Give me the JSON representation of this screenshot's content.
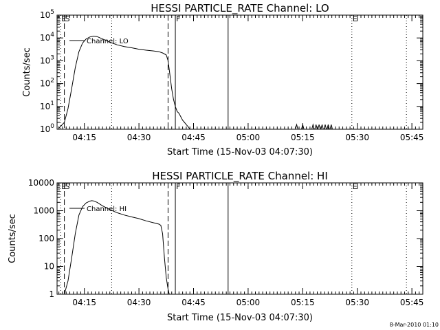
{
  "chart_data": [
    {
      "type": "line",
      "title": "HESSI PARTICLE_RATE Channel: LO",
      "xlabel": "Start Time (15-Nov-03 04:07:30)",
      "ylabel": "Counts/sec",
      "yscale": "log",
      "grid": false,
      "legend_position": "top-left",
      "xlim": [
        "04:07:30",
        "05:48:00"
      ],
      "ylim": [
        1,
        100000
      ],
      "x_ticks": [
        "04:15",
        "04:30",
        "04:45",
        "05:00",
        "05:15",
        "05:30",
        "05:45"
      ],
      "y_ticks": [
        {
          "value": 1,
          "base": "10",
          "exp": "0"
        },
        {
          "value": 10,
          "base": "10",
          "exp": "1"
        },
        {
          "value": 100,
          "base": "10",
          "exp": "2"
        },
        {
          "value": 1000,
          "base": "10",
          "exp": "3"
        },
        {
          "value": 10000,
          "base": "10",
          "exp": "4"
        },
        {
          "value": 100000,
          "base": "10",
          "exp": "5"
        }
      ],
      "series": [
        {
          "name": "Channel: LO",
          "x": [
            "04:08:00",
            "04:09:30",
            "04:10:30",
            "04:11:30",
            "04:12:30",
            "04:13:30",
            "04:14:30",
            "04:15:30",
            "04:16:30",
            "04:17:30",
            "04:18:30",
            "04:20:00",
            "04:22:00",
            "04:24:00",
            "04:26:00",
            "04:28:00",
            "04:30:00",
            "04:32:00",
            "04:34:00",
            "04:35:30",
            "04:36:30",
            "04:37:30",
            "04:38:00",
            "04:38:30",
            "04:39:00",
            "04:39:30",
            "04:40:00",
            "04:40:30",
            "04:41:00",
            "04:41:30",
            "04:42:00",
            "04:42:30",
            "04:43:00",
            "04:43:30",
            "04:44:00"
          ],
          "y": [
            1.1,
            2,
            8,
            60,
            500,
            2500,
            6000,
            9000,
            11000,
            12000,
            11500,
            9000,
            6500,
            5000,
            4200,
            3700,
            3200,
            2900,
            2700,
            2500,
            2200,
            1800,
            1000,
            250,
            60,
            20,
            10,
            6,
            5,
            3.5,
            2.5,
            2,
            1.6,
            1.3,
            1
          ]
        },
        {
          "name": "",
          "x": [
            "05:13:00",
            "05:13:20",
            "05:13:40",
            "05:14:40",
            "05:15:00",
            "05:15:20",
            "05:17:30",
            "05:17:50",
            "05:18:10",
            "05:18:20",
            "05:18:40",
            "05:19:00",
            "05:19:10",
            "05:19:30",
            "05:19:50",
            "05:20:00",
            "05:20:20",
            "05:20:40",
            "05:20:50",
            "05:21:10",
            "05:21:30",
            "05:21:40",
            "05:22:00",
            "05:22:20",
            "05:22:30",
            "05:22:50",
            "05:23:10"
          ],
          "y": [
            1,
            1.6,
            1,
            1,
            1.6,
            1,
            1,
            1.6,
            1,
            1,
            1.6,
            1,
            1,
            1.6,
            1,
            1,
            1.6,
            1,
            1,
            1.6,
            1,
            1,
            1.6,
            1,
            1,
            1.6,
            1
          ]
        }
      ],
      "vertical_markers": [
        {
          "x": "04:08:30",
          "style": "dotted",
          "label": "E"
        },
        {
          "x": "04:09:30",
          "style": "dashed",
          "label": "S"
        },
        {
          "x": "04:22:30",
          "style": "dotted",
          "label": ""
        },
        {
          "x": "04:38:00",
          "style": "dashed",
          "label": ""
        },
        {
          "x": "04:40:00",
          "style": "solid",
          "label": "F"
        },
        {
          "x": "04:54:30",
          "style": "solid",
          "label": ""
        },
        {
          "x": "05:28:30",
          "style": "dotted",
          "label": "E"
        },
        {
          "x": "05:43:30",
          "style": "dotted",
          "label": ""
        }
      ]
    },
    {
      "type": "line",
      "title": "HESSI PARTICLE_RATE Channel: HI",
      "xlabel": "Start Time (15-Nov-03 04:07:30)",
      "ylabel": "Counts/sec",
      "yscale": "log",
      "grid": false,
      "legend_position": "top-left",
      "xlim": [
        "04:07:30",
        "05:48:00"
      ],
      "ylim": [
        1,
        10000
      ],
      "x_ticks": [
        "04:15",
        "04:30",
        "04:45",
        "05:00",
        "05:15",
        "05:30",
        "05:45"
      ],
      "y_ticks": [
        {
          "value": 1,
          "label": "1"
        },
        {
          "value": 10,
          "label": "10"
        },
        {
          "value": 100,
          "label": "100"
        },
        {
          "value": 1000,
          "label": "1000"
        },
        {
          "value": 10000,
          "label": "10000"
        }
      ],
      "series": [
        {
          "name": "Channel: HI",
          "x": [
            "04:09:30",
            "04:10:30",
            "04:11:30",
            "04:12:30",
            "04:13:30",
            "04:14:30",
            "04:15:30",
            "04:16:30",
            "04:17:00",
            "04:17:30",
            "04:18:30",
            "04:20:00",
            "04:22:00",
            "04:24:00",
            "04:26:00",
            "04:28:00",
            "04:30:00",
            "04:32:00",
            "04:34:00",
            "04:35:30",
            "04:36:00",
            "04:36:30",
            "04:37:00",
            "04:37:30",
            "04:38:00",
            "04:38:20"
          ],
          "y": [
            1,
            3,
            20,
            150,
            700,
            1400,
            1900,
            2200,
            2300,
            2250,
            2000,
            1500,
            1100,
            850,
            700,
            600,
            520,
            430,
            370,
            330,
            300,
            150,
            20,
            4,
            1.5,
            1
          ]
        }
      ],
      "vertical_markers": [
        {
          "x": "04:08:30",
          "style": "dotted",
          "label": "E"
        },
        {
          "x": "04:09:30",
          "style": "dashed",
          "label": "S"
        },
        {
          "x": "04:22:30",
          "style": "dotted",
          "label": ""
        },
        {
          "x": "04:38:00",
          "style": "dashed",
          "label": ""
        },
        {
          "x": "04:40:00",
          "style": "solid",
          "label": "F"
        },
        {
          "x": "04:54:30",
          "style": "solid",
          "label": ""
        },
        {
          "x": "05:28:30",
          "style": "dotted",
          "label": "E"
        },
        {
          "x": "05:43:30",
          "style": "dotted",
          "label": ""
        }
      ]
    }
  ],
  "footer": {
    "timestamp": "8-Mar-2010 01:10"
  },
  "colors": {
    "foreground": "#000000",
    "background": "#ffffff"
  }
}
